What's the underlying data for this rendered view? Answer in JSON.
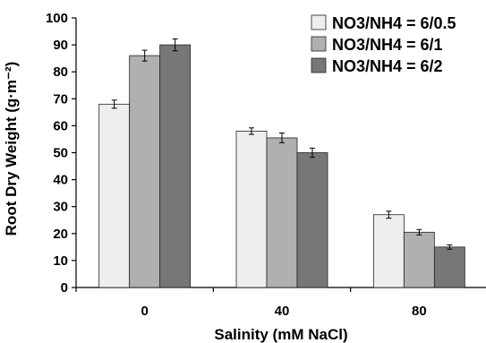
{
  "chart_data": {
    "type": "bar",
    "xlabel": "Salinity (mM NaCl)",
    "ylabel": "Root Dry Weight (g·m⁻²)",
    "ylim": [
      0,
      100
    ],
    "y_ticks": [
      "0",
      "10",
      "20",
      "30",
      "40",
      "50",
      "60",
      "70",
      "80",
      "90",
      "100"
    ],
    "categories": [
      "0",
      "40",
      "80"
    ],
    "grid": false,
    "legend_position": "top-right",
    "series": [
      {
        "name": "NO3/NH4 = 6/0.5",
        "color": "#eeeeee",
        "values": [
          68,
          58,
          27
        ],
        "errors": [
          1.5,
          1.2,
          1.3
        ]
      },
      {
        "name": "NO3/NH4 = 6/1",
        "color": "#b0b0b0",
        "values": [
          86,
          55.5,
          20.5
        ],
        "errors": [
          2.0,
          1.8,
          1.0
        ]
      },
      {
        "name": "NO3/NH4 = 6/2",
        "color": "#777777",
        "values": [
          90,
          50,
          15
        ],
        "errors": [
          2.2,
          1.7,
          0.8
        ]
      }
    ]
  }
}
